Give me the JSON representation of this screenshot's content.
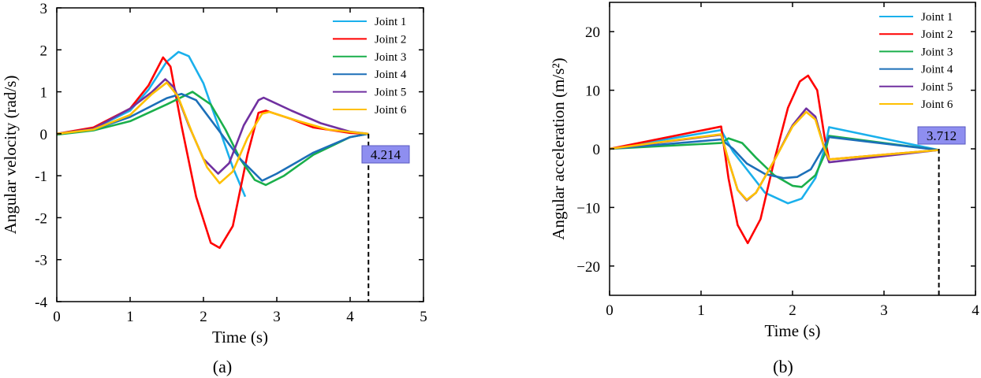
{
  "chart_data": [
    {
      "type": "line",
      "caption": "(a)",
      "xlabel": "Time (s)",
      "ylabel": "Angular velocity (rad/s)",
      "xlim": [
        0,
        5
      ],
      "ylim": [
        -4,
        3
      ],
      "xticks": [
        "0",
        "1",
        "2",
        "3",
        "4",
        "5"
      ],
      "yticks": [
        "-4",
        "-3",
        "-2",
        "-1",
        "0",
        "1",
        "2",
        "3"
      ],
      "xtick_values": [
        0,
        1,
        2,
        3,
        4,
        5
      ],
      "ytick_values": [
        -4,
        -3,
        -2,
        -1,
        0,
        1,
        2,
        3
      ],
      "grid": false,
      "legend_position": "top-right",
      "annotation": {
        "label": "4.214",
        "x": 4.25,
        "y": 0,
        "color": "#8E8EF0"
      },
      "series": [
        {
          "name": "Joint 1",
          "color": "#1AB0EC",
          "points": [
            [
              0,
              0
            ],
            [
              0.5,
              0.12
            ],
            [
              1,
              0.55
            ],
            [
              1.25,
              1.05
            ],
            [
              1.5,
              1.72
            ],
            [
              1.66,
              1.95
            ],
            [
              1.8,
              1.85
            ],
            [
              2.0,
              1.2
            ],
            [
              2.2,
              0.2
            ],
            [
              2.4,
              -0.8
            ],
            [
              2.57,
              -1.5
            ]
          ]
        },
        {
          "name": "Joint 2",
          "color": "#FF0000",
          "points": [
            [
              0,
              0
            ],
            [
              0.5,
              0.15
            ],
            [
              1,
              0.6
            ],
            [
              1.25,
              1.15
            ],
            [
              1.45,
              1.82
            ],
            [
              1.55,
              1.6
            ],
            [
              1.7,
              0.2
            ],
            [
              1.9,
              -1.5
            ],
            [
              2.1,
              -2.6
            ],
            [
              2.22,
              -2.72
            ],
            [
              2.4,
              -2.2
            ],
            [
              2.6,
              -0.5
            ],
            [
              2.75,
              0.5
            ],
            [
              2.85,
              0.55
            ],
            [
              3.2,
              0.35
            ],
            [
              3.5,
              0.15
            ],
            [
              4,
              0.02
            ],
            [
              4.25,
              0
            ]
          ]
        },
        {
          "name": "Joint 3",
          "color": "#1AAF4B",
          "points": [
            [
              0,
              -0.02
            ],
            [
              0.5,
              0.08
            ],
            [
              1,
              0.3
            ],
            [
              1.5,
              0.7
            ],
            [
              1.85,
              1.0
            ],
            [
              2.1,
              0.7
            ],
            [
              2.3,
              0.1
            ],
            [
              2.5,
              -0.6
            ],
            [
              2.7,
              -1.1
            ],
            [
              2.85,
              -1.22
            ],
            [
              3.1,
              -1.0
            ],
            [
              3.5,
              -0.5
            ],
            [
              4,
              -0.08
            ],
            [
              4.25,
              0
            ]
          ]
        },
        {
          "name": "Joint 4",
          "color": "#1C6FB8",
          "points": [
            [
              0,
              0
            ],
            [
              0.5,
              0.1
            ],
            [
              1,
              0.4
            ],
            [
              1.5,
              0.85
            ],
            [
              1.7,
              0.95
            ],
            [
              1.9,
              0.8
            ],
            [
              2.2,
              0.1
            ],
            [
              2.5,
              -0.6
            ],
            [
              2.8,
              -1.12
            ],
            [
              3.0,
              -0.95
            ],
            [
              3.5,
              -0.45
            ],
            [
              4,
              -0.08
            ],
            [
              4.25,
              0
            ]
          ]
        },
        {
          "name": "Joint 5",
          "color": "#7030A0",
          "points": [
            [
              0,
              0
            ],
            [
              0.5,
              0.12
            ],
            [
              1,
              0.6
            ],
            [
              1.3,
              1.0
            ],
            [
              1.48,
              1.3
            ],
            [
              1.6,
              1.1
            ],
            [
              1.8,
              0.2
            ],
            [
              2.0,
              -0.6
            ],
            [
              2.2,
              -0.95
            ],
            [
              2.35,
              -0.7
            ],
            [
              2.55,
              0.2
            ],
            [
              2.75,
              0.8
            ],
            [
              2.82,
              0.86
            ],
            [
              3.2,
              0.55
            ],
            [
              3.6,
              0.25
            ],
            [
              4,
              0.05
            ],
            [
              4.25,
              0
            ]
          ]
        },
        {
          "name": "Joint 6",
          "color": "#FFC000",
          "points": [
            [
              0,
              0
            ],
            [
              0.5,
              0.1
            ],
            [
              1,
              0.45
            ],
            [
              1.3,
              0.95
            ],
            [
              1.5,
              1.22
            ],
            [
              1.65,
              0.9
            ],
            [
              1.85,
              0
            ],
            [
              2.05,
              -0.8
            ],
            [
              2.22,
              -1.18
            ],
            [
              2.4,
              -0.9
            ],
            [
              2.6,
              -0.1
            ],
            [
              2.8,
              0.48
            ],
            [
              2.9,
              0.52
            ],
            [
              3.3,
              0.3
            ],
            [
              3.7,
              0.1
            ],
            [
              4.25,
              0
            ]
          ]
        }
      ]
    },
    {
      "type": "line",
      "caption": "(b)",
      "xlabel": "Time (s)",
      "ylabel": "Angular acceleration (m/s²)",
      "xlim": [
        0,
        4
      ],
      "ylim": [
        -25,
        25
      ],
      "xticks": [
        "0",
        "1",
        "2",
        "3",
        "4"
      ],
      "yticks": [
        "−20",
        "−10",
        "0",
        "10",
        "20"
      ],
      "xtick_values": [
        0,
        1,
        2,
        3,
        4
      ],
      "ytick_values": [
        -20,
        -10,
        0,
        10,
        20
      ],
      "grid": false,
      "legend_position": "top-right",
      "annotation": {
        "label": "3.712",
        "x": 3.6,
        "y": 0,
        "color": "#8E8EF0"
      },
      "series": [
        {
          "name": "Joint 1",
          "color": "#1AB0EC",
          "points": [
            [
              0,
              0
            ],
            [
              1.22,
              3.2
            ],
            [
              1.35,
              -0.5
            ],
            [
              1.5,
              -3.5
            ],
            [
              1.7,
              -7.5
            ],
            [
              1.95,
              -9.3
            ],
            [
              2.1,
              -8.5
            ],
            [
              2.25,
              -5
            ],
            [
              2.35,
              0
            ],
            [
              2.4,
              3.7
            ],
            [
              3.6,
              -0.2
            ]
          ]
        },
        {
          "name": "Joint 2",
          "color": "#FF0000",
          "points": [
            [
              0,
              0
            ],
            [
              1.22,
              3.8
            ],
            [
              1.3,
              -5
            ],
            [
              1.4,
              -13
            ],
            [
              1.51,
              -16.1
            ],
            [
              1.65,
              -12
            ],
            [
              1.8,
              -2
            ],
            [
              1.95,
              7
            ],
            [
              2.08,
              11.5
            ],
            [
              2.17,
              12.5
            ],
            [
              2.27,
              10
            ],
            [
              2.35,
              2
            ],
            [
              2.4,
              -1.8
            ],
            [
              3.6,
              -0.2
            ]
          ]
        },
        {
          "name": "Joint 3",
          "color": "#1AAF4B",
          "points": [
            [
              0,
              0
            ],
            [
              1.22,
              1
            ],
            [
              1.3,
              1.8
            ],
            [
              1.45,
              1.0
            ],
            [
              1.6,
              -1.5
            ],
            [
              1.8,
              -4.5
            ],
            [
              2.0,
              -6.3
            ],
            [
              2.1,
              -6.5
            ],
            [
              2.25,
              -4.5
            ],
            [
              2.35,
              -1
            ],
            [
              2.4,
              2.2
            ],
            [
              3.6,
              -0.2
            ]
          ]
        },
        {
          "name": "Joint 4",
          "color": "#1C6FB8",
          "points": [
            [
              0,
              0
            ],
            [
              1.22,
              1.6
            ],
            [
              1.35,
              0
            ],
            [
              1.5,
              -2.5
            ],
            [
              1.7,
              -4.3
            ],
            [
              1.9,
              -5
            ],
            [
              2.05,
              -4.8
            ],
            [
              2.2,
              -3.5
            ],
            [
              2.35,
              0.5
            ],
            [
              2.4,
              2
            ],
            [
              3.6,
              -0.2
            ]
          ]
        },
        {
          "name": "Joint 5",
          "color": "#7030A0",
          "points": [
            [
              0,
              0
            ],
            [
              1.22,
              2.4
            ],
            [
              1.3,
              -2
            ],
            [
              1.4,
              -7
            ],
            [
              1.5,
              -8.8
            ],
            [
              1.6,
              -7.5
            ],
            [
              1.8,
              -2
            ],
            [
              2.0,
              4
            ],
            [
              2.15,
              6.9
            ],
            [
              2.25,
              5.5
            ],
            [
              2.35,
              0
            ],
            [
              2.4,
              -2.3
            ],
            [
              3.6,
              -0.2
            ]
          ]
        },
        {
          "name": "Joint 6",
          "color": "#FFC000",
          "points": [
            [
              0,
              0
            ],
            [
              1.22,
              2.5
            ],
            [
              1.3,
              -2
            ],
            [
              1.4,
              -7
            ],
            [
              1.5,
              -8.7
            ],
            [
              1.6,
              -7.5
            ],
            [
              1.8,
              -2
            ],
            [
              2.0,
              3.8
            ],
            [
              2.15,
              6.3
            ],
            [
              2.25,
              5
            ],
            [
              2.35,
              0
            ],
            [
              2.4,
              -1.8
            ],
            [
              3.6,
              -0.2
            ]
          ]
        }
      ]
    }
  ]
}
